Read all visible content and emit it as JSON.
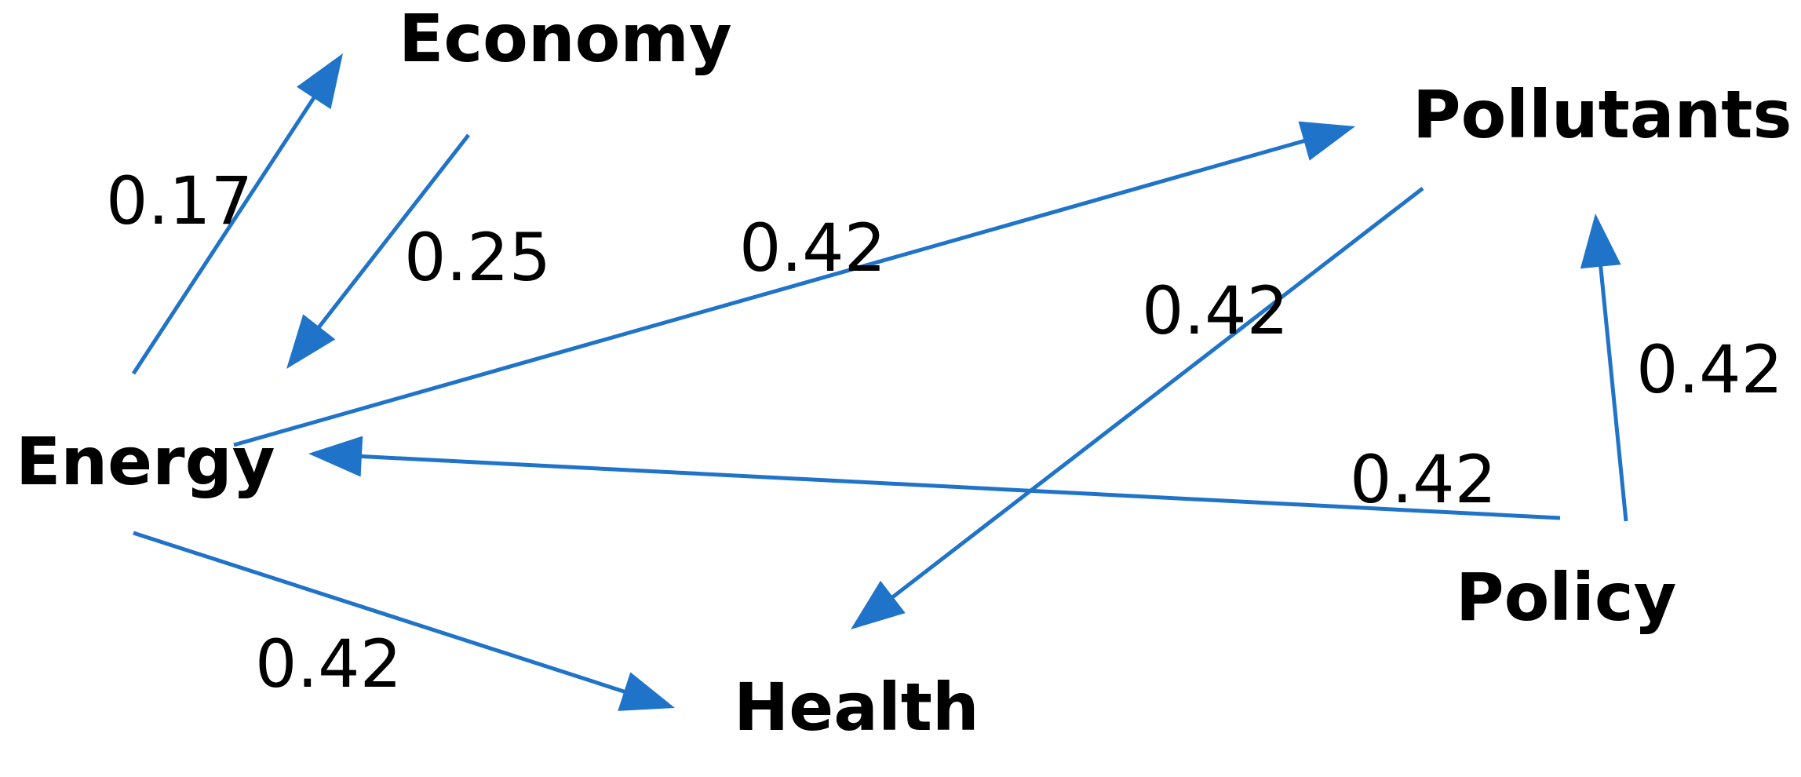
{
  "colors": {
    "edge": "#1f73c8",
    "text": "#000000",
    "background": "#ffffff"
  },
  "nodes": [
    {
      "id": "economy",
      "label": "Economy"
    },
    {
      "id": "pollutants",
      "label": "Pollutants"
    },
    {
      "id": "energy",
      "label": "Energy"
    },
    {
      "id": "policy",
      "label": "Policy"
    },
    {
      "id": "health",
      "label": "Health"
    }
  ],
  "edges": [
    {
      "id": "energy-economy",
      "from": "energy",
      "to": "economy",
      "weight": "0.17"
    },
    {
      "id": "economy-energy",
      "from": "economy",
      "to": "energy",
      "weight": "0.25"
    },
    {
      "id": "energy-pollutants",
      "from": "energy",
      "to": "pollutants",
      "weight": "0.42"
    },
    {
      "id": "pollutants-health",
      "from": "pollutants",
      "to": "health",
      "weight": "0.42"
    },
    {
      "id": "policy-pollutants",
      "from": "policy",
      "to": "pollutants",
      "weight": "0.42"
    },
    {
      "id": "policy-energy",
      "from": "policy",
      "to": "energy",
      "weight": "0.42"
    },
    {
      "id": "energy-health",
      "from": "energy",
      "to": "health",
      "weight": "0.42"
    }
  ]
}
